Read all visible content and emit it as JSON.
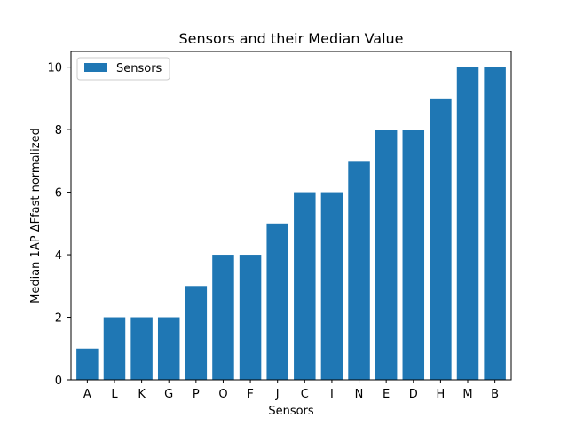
{
  "chart_data": {
    "type": "bar",
    "title": "Sensors and their Median Value",
    "xlabel": "Sensors",
    "ylabel": "Median 1AP ΔFfast normalized",
    "categories": [
      "A",
      "L",
      "K",
      "G",
      "P",
      "O",
      "F",
      "J",
      "C",
      "I",
      "N",
      "E",
      "D",
      "H",
      "M",
      "B"
    ],
    "series": [
      {
        "name": "Sensors",
        "values": [
          1,
          2,
          2,
          2,
          3,
          4,
          4,
          5,
          6,
          6,
          7,
          8,
          8,
          9,
          10,
          10
        ],
        "color": "#1f77b4"
      }
    ],
    "ylim": [
      0,
      10.5
    ],
    "yticks": [
      0,
      2,
      4,
      6,
      8,
      10
    ],
    "grid": false,
    "legend": "top-left"
  }
}
